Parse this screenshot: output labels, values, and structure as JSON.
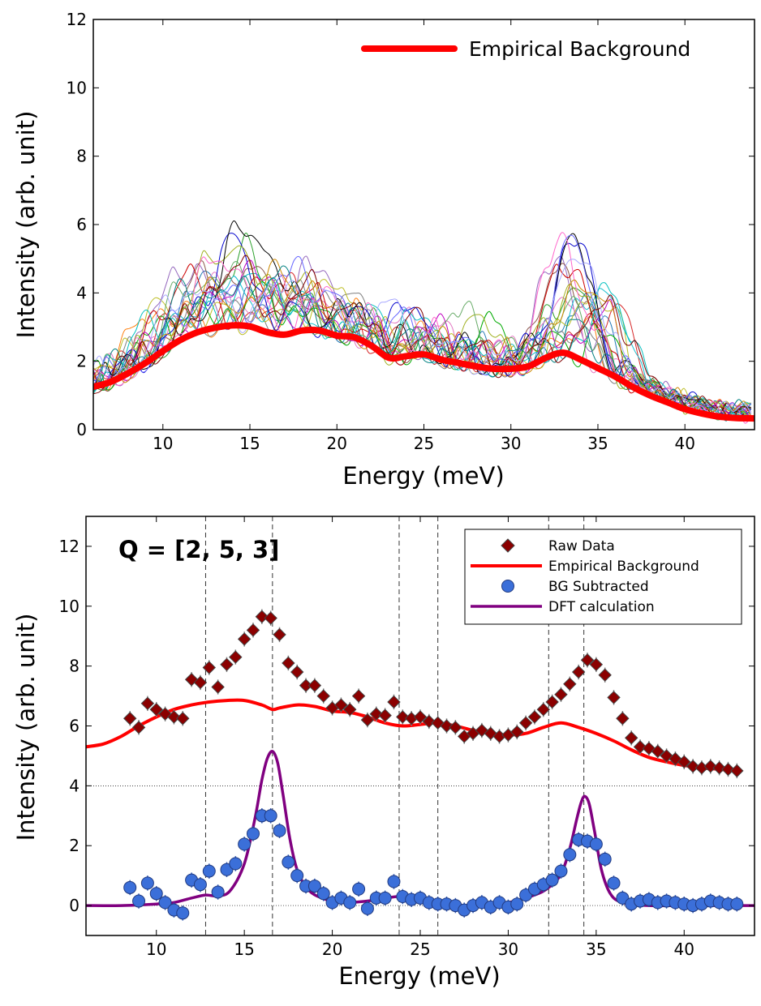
{
  "chart_data": [
    {
      "type": "line",
      "id": "top",
      "xlabel": "Energy (meV)",
      "ylabel": "Intensity (arb. unit)",
      "xlim": [
        6,
        44
      ],
      "ylim": [
        0,
        12
      ],
      "xticks": [
        10,
        15,
        20,
        25,
        30,
        35,
        40
      ],
      "yticks": [
        0,
        2,
        4,
        6,
        8,
        10,
        12
      ],
      "xtick_labels": [
        "10",
        "15",
        "20",
        "25",
        "30",
        "35",
        "40"
      ],
      "ytick_labels": [
        "0",
        "2",
        "4",
        "6",
        "8",
        "10",
        "12"
      ],
      "legend": {
        "position": "top-right",
        "entries": [
          {
            "label": "Empirical Background",
            "color": "#ff0000"
          }
        ]
      },
      "background": {
        "name": "Empirical Background",
        "color": "#ff0000",
        "x": [
          6,
          7,
          8,
          9,
          10,
          11,
          12,
          13,
          14,
          15,
          16,
          17,
          18,
          19,
          20,
          21,
          22,
          23,
          24,
          25,
          26,
          27,
          28,
          29,
          30,
          31,
          32,
          33,
          34,
          35,
          36,
          37,
          38,
          39,
          40,
          41,
          42,
          43,
          44
        ],
        "y": [
          1.25,
          1.4,
          1.65,
          1.95,
          2.3,
          2.62,
          2.85,
          2.98,
          3.05,
          3.02,
          2.85,
          2.78,
          2.9,
          2.9,
          2.75,
          2.7,
          2.45,
          2.1,
          2.15,
          2.2,
          2.05,
          1.95,
          1.85,
          1.78,
          1.78,
          1.85,
          2.1,
          2.25,
          2.05,
          1.8,
          1.55,
          1.25,
          1.0,
          0.8,
          0.6,
          0.47,
          0.38,
          0.34,
          0.33
        ]
      },
      "overlay_series": {
        "description": "many overlapping raw intensity spectra",
        "count": 24,
        "colors": [
          "#1f77b4",
          "#ff7f0e",
          "#2ca02c",
          "#d62728",
          "#9467bd",
          "#8c564b",
          "#e377c2",
          "#7f7f7f",
          "#bcbd22",
          "#17becf",
          "#0000cc",
          "#00aa00",
          "#cc0000",
          "#00bfbf",
          "#bf00bf",
          "#a0b020",
          "#000000",
          "#66aa66",
          "#ff66cc",
          "#6666ff",
          "#cc8800",
          "#008080",
          "#800000",
          "#aaaaff"
        ]
      }
    },
    {
      "type": "scatter",
      "id": "bottom",
      "annotation": "Q = [2, 5, 3]",
      "xlabel": "Energy (meV)",
      "ylabel": "Intensity (arb. unit)",
      "xlim": [
        6,
        44
      ],
      "ylim": [
        -1,
        13
      ],
      "xticks": [
        10,
        15,
        20,
        25,
        30,
        35,
        40
      ],
      "yticks": [
        0,
        2,
        4,
        6,
        8,
        10,
        12
      ],
      "xtick_labels": [
        "10",
        "15",
        "20",
        "25",
        "30",
        "35",
        "40"
      ],
      "ytick_labels": [
        "0",
        "2",
        "4",
        "6",
        "8",
        "10",
        "12"
      ],
      "vlines": [
        12.8,
        16.6,
        23.8,
        26.0,
        32.3,
        34.3
      ],
      "hlines": [
        0,
        4
      ],
      "legend": {
        "position": "top-right",
        "entries": [
          {
            "label": "Raw Data",
            "marker": "diamond",
            "color": "#8b0000"
          },
          {
            "label": "Empirical Background",
            "marker": "line",
            "color": "#ff0000"
          },
          {
            "label": "BG Subtracted",
            "marker": "circle",
            "color": "#3b6fd9"
          },
          {
            "label": "DFT calculation",
            "marker": "line",
            "color": "#800080"
          }
        ]
      },
      "series": [
        {
          "name": "Raw Data",
          "marker": "diamond",
          "color": "#8b0000",
          "x": [
            8.5,
            9.0,
            9.5,
            10.0,
            10.5,
            11.0,
            11.5,
            12.0,
            12.5,
            13.0,
            13.5,
            14.0,
            14.5,
            15.0,
            15.5,
            16.0,
            16.5,
            17.0,
            17.5,
            18.0,
            18.5,
            19.0,
            19.5,
            20.0,
            20.5,
            21.0,
            21.5,
            22.0,
            22.5,
            23.0,
            23.5,
            24.0,
            24.5,
            25.0,
            25.5,
            26.0,
            26.5,
            27.0,
            27.5,
            28.0,
            28.5,
            29.0,
            29.5,
            30.0,
            30.5,
            31.0,
            31.5,
            32.0,
            32.5,
            33.0,
            33.5,
            34.0,
            34.5,
            35.0,
            35.5,
            36.0,
            36.5,
            37.0,
            37.5,
            38.0,
            38.5,
            39.0,
            39.5,
            40.0,
            40.5,
            41.0,
            41.5,
            42.0,
            42.5,
            43.0
          ],
          "y": [
            6.25,
            5.95,
            6.75,
            6.55,
            6.4,
            6.3,
            6.25,
            7.55,
            7.45,
            7.95,
            7.3,
            8.05,
            8.3,
            8.9,
            9.2,
            9.65,
            9.6,
            9.05,
            8.1,
            7.8,
            7.35,
            7.35,
            7.0,
            6.6,
            6.7,
            6.55,
            7.0,
            6.2,
            6.4,
            6.35,
            6.8,
            6.3,
            6.25,
            6.3,
            6.15,
            6.1,
            6.0,
            5.95,
            5.65,
            5.75,
            5.85,
            5.75,
            5.65,
            5.7,
            5.8,
            6.1,
            6.3,
            6.55,
            6.8,
            7.05,
            7.4,
            7.8,
            8.2,
            8.05,
            7.7,
            6.95,
            6.25,
            5.6,
            5.3,
            5.25,
            5.15,
            5.0,
            4.9,
            4.8,
            4.65,
            4.6,
            4.65,
            4.6,
            4.55,
            4.5
          ],
          "yerr": 0.25
        },
        {
          "name": "Empirical Background",
          "marker": "line",
          "color": "#ff0000",
          "x": [
            6,
            7,
            8,
            9,
            10,
            11,
            12,
            13,
            14,
            15,
            16,
            16.6,
            17,
            18,
            19,
            20,
            21,
            22,
            23,
            24,
            25,
            26,
            27,
            28,
            29,
            30,
            31,
            32,
            33,
            34,
            35,
            36,
            37,
            38,
            39,
            40,
            41,
            42,
            43
          ],
          "y": [
            5.3,
            5.4,
            5.65,
            6.0,
            6.3,
            6.55,
            6.7,
            6.8,
            6.85,
            6.85,
            6.7,
            6.55,
            6.6,
            6.7,
            6.65,
            6.5,
            6.45,
            6.3,
            6.1,
            6.0,
            6.05,
            6.1,
            6.0,
            5.85,
            5.75,
            5.7,
            5.75,
            5.95,
            6.1,
            5.95,
            5.75,
            5.5,
            5.2,
            4.95,
            4.8,
            4.68,
            4.6,
            4.55,
            4.5
          ]
        },
        {
          "name": "BG Subtracted",
          "marker": "circle",
          "color": "#3b6fd9",
          "x": [
            8.5,
            9.0,
            9.5,
            10.0,
            10.5,
            11.0,
            11.5,
            12.0,
            12.5,
            13.0,
            13.5,
            14.0,
            14.5,
            15.0,
            15.5,
            16.0,
            16.5,
            17.0,
            17.5,
            18.0,
            18.5,
            19.0,
            19.5,
            20.0,
            20.5,
            21.0,
            21.5,
            22.0,
            22.5,
            23.0,
            23.5,
            24.0,
            24.5,
            25.0,
            25.5,
            26.0,
            26.5,
            27.0,
            27.5,
            28.0,
            28.5,
            29.0,
            29.5,
            30.0,
            30.5,
            31.0,
            31.5,
            32.0,
            32.5,
            33.0,
            33.5,
            34.0,
            34.5,
            35.0,
            35.5,
            36.0,
            36.5,
            37.0,
            37.5,
            38.0,
            38.5,
            39.0,
            39.5,
            40.0,
            40.5,
            41.0,
            41.5,
            42.0,
            42.5,
            43.0
          ],
          "y": [
            0.6,
            0.15,
            0.75,
            0.4,
            0.1,
            -0.15,
            -0.25,
            0.85,
            0.7,
            1.15,
            0.45,
            1.2,
            1.4,
            2.05,
            2.4,
            3.0,
            3.0,
            2.5,
            1.45,
            1.0,
            0.65,
            0.65,
            0.4,
            0.1,
            0.25,
            0.1,
            0.55,
            -0.1,
            0.25,
            0.25,
            0.8,
            0.3,
            0.2,
            0.25,
            0.1,
            0.05,
            0.05,
            0.0,
            -0.15,
            0.0,
            0.1,
            -0.05,
            0.1,
            -0.05,
            0.05,
            0.35,
            0.55,
            0.7,
            0.85,
            1.15,
            1.7,
            2.2,
            2.15,
            2.05,
            1.55,
            0.75,
            0.25,
            0.05,
            0.15,
            0.2,
            0.1,
            0.15,
            0.1,
            0.05,
            0.0,
            0.05,
            0.15,
            0.1,
            0.05,
            0.05
          ],
          "yerr": 0.25
        },
        {
          "name": "DFT calculation",
          "marker": "line",
          "color": "#800080",
          "x": [
            6,
            8,
            10,
            11,
            12,
            12.8,
            13.5,
            14.2,
            15.0,
            15.6,
            16.0,
            16.3,
            16.6,
            16.9,
            17.2,
            17.6,
            18.0,
            18.6,
            19.4,
            20.5,
            22,
            23.8,
            25,
            26,
            28,
            30,
            31.5,
            32.3,
            33.0,
            33.5,
            33.9,
            34.15,
            34.35,
            34.6,
            34.9,
            35.3,
            35.8,
            36.5,
            38,
            40,
            44
          ],
          "y": [
            0.0,
            0.0,
            0.05,
            0.1,
            0.25,
            0.35,
            0.32,
            0.5,
            1.4,
            2.9,
            4.2,
            4.9,
            5.15,
            4.75,
            3.7,
            2.2,
            1.2,
            0.55,
            0.25,
            0.1,
            0.15,
            0.3,
            0.15,
            0.05,
            0.0,
            0.1,
            0.35,
            0.6,
            1.05,
            1.9,
            2.9,
            3.45,
            3.65,
            3.4,
            2.5,
            1.2,
            0.4,
            0.1,
            0.0,
            0.0,
            0.0
          ]
        }
      ]
    }
  ]
}
